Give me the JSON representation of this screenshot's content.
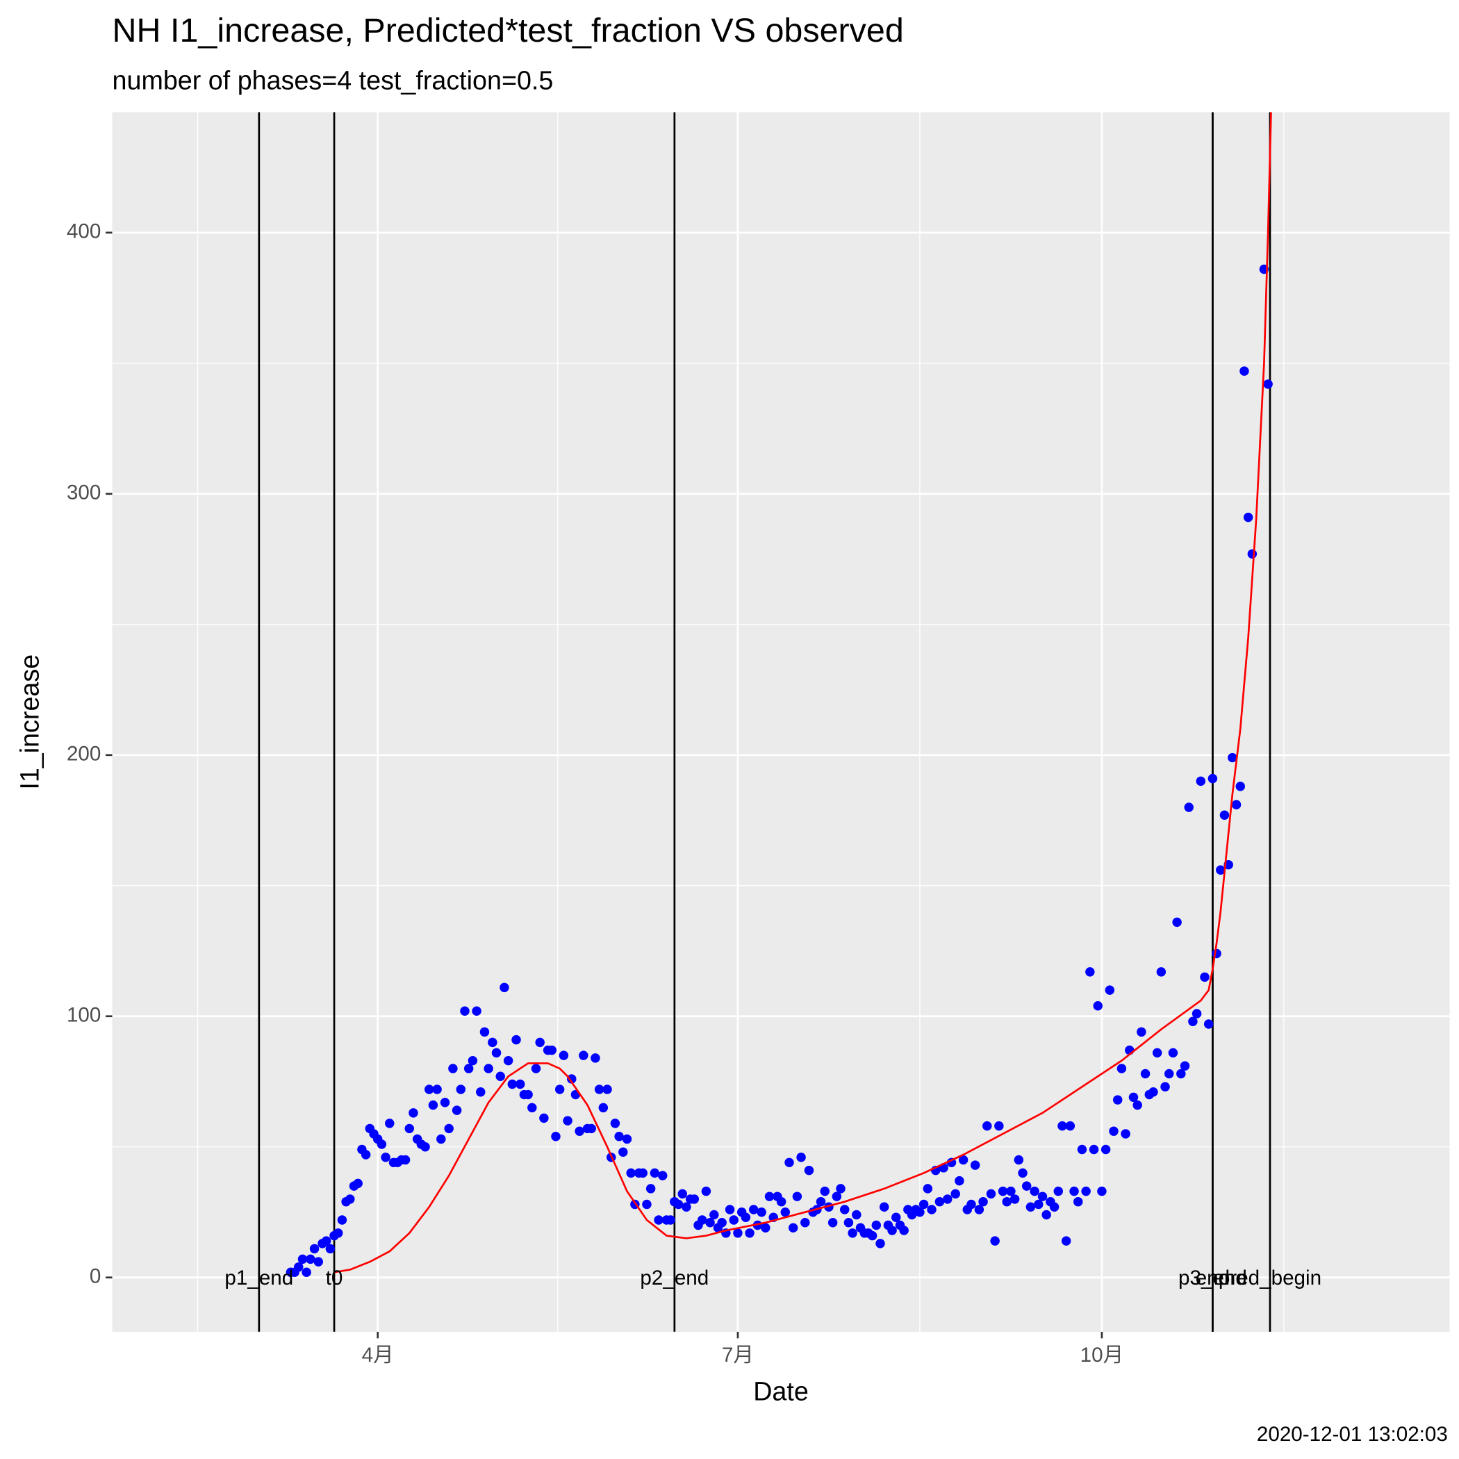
{
  "chart_data": {
    "type": "scatter",
    "title": "NH I1_increase, Predicted*test_fraction VS observed",
    "subtitle": "number of phases=4   test_fraction=0.5",
    "x_label": "Date",
    "y_label": "I1_increase",
    "caption": "2020-12-01 13:02:03",
    "xlim": [
      24.9,
      362.9
    ],
    "xticks": [
      {
        "value": 92,
        "label": "4月"
      },
      {
        "value": 183,
        "label": "7月"
      },
      {
        "value": 275,
        "label": "10月"
      }
    ],
    "ylim": [
      -20.8,
      446.1
    ],
    "yticks": [
      0,
      100,
      200,
      300,
      400
    ],
    "grid": true,
    "minor_grid": true,
    "markers": [
      {
        "label": "p1_end",
        "x": 62
      },
      {
        "label": "t0",
        "x": 81
      },
      {
        "label": "p2_end",
        "x": 167
      },
      {
        "label": "p3_end",
        "x": 303
      },
      {
        "label": "end",
        "x": 303
      },
      {
        "label": "pred_begin",
        "x": 317.5
      }
    ],
    "series": [
      {
        "type": "scatter",
        "color": "#0000ff",
        "x": [
          70,
          71,
          72,
          73,
          74,
          75,
          76,
          77,
          78,
          79,
          80,
          81,
          82,
          83,
          84,
          85,
          86,
          87,
          88,
          89,
          90,
          91,
          92,
          93,
          94,
          95,
          96,
          97,
          98,
          99,
          100,
          101,
          102,
          103,
          104,
          105,
          106,
          107,
          108,
          109,
          110,
          111,
          112,
          113,
          114,
          115,
          116,
          117,
          118,
          119,
          120,
          121,
          122,
          123,
          124,
          125,
          126,
          127,
          128,
          129,
          130,
          131,
          132,
          133,
          134,
          135,
          136,
          137,
          138,
          139,
          140,
          141,
          142,
          143,
          144,
          145,
          146,
          147,
          148,
          149,
          150,
          151,
          152,
          153,
          154,
          155,
          156,
          157,
          158,
          159,
          160,
          161,
          162,
          163,
          164,
          165,
          166,
          167,
          168,
          169,
          170,
          171,
          172,
          173,
          174,
          175,
          176,
          177,
          178,
          179,
          180,
          181,
          182,
          183,
          184,
          185,
          186,
          187,
          188,
          189,
          190,
          191,
          192,
          193,
          194,
          195,
          196,
          197,
          198,
          199,
          200,
          201,
          202,
          203,
          204,
          205,
          206,
          207,
          208,
          209,
          210,
          211,
          212,
          213,
          214,
          215,
          216,
          217,
          218,
          219,
          220,
          221,
          222,
          223,
          224,
          225,
          226,
          227,
          228,
          229,
          230,
          231,
          232,
          233,
          234,
          235,
          236,
          237,
          238,
          239,
          240,
          241,
          242,
          243,
          244,
          245,
          246,
          247,
          248,
          249,
          250,
          251,
          252,
          253,
          254,
          255,
          256,
          257,
          258,
          259,
          260,
          261,
          262,
          263,
          264,
          265,
          266,
          267,
          268,
          269,
          270,
          271,
          272,
          273,
          274,
          275,
          276,
          277,
          278,
          279,
          280,
          281,
          282,
          283,
          284,
          285,
          286,
          287,
          288,
          289,
          290,
          291,
          292,
          293,
          294,
          295,
          296,
          297,
          298,
          299,
          300,
          301,
          302,
          303,
          304,
          305,
          306,
          307,
          308,
          309,
          310,
          311,
          312,
          313,
          316,
          317
        ],
        "values": [
          2,
          2,
          4,
          7,
          2,
          7,
          11,
          6,
          13,
          14,
          11,
          16,
          17,
          22,
          29,
          30,
          35,
          36,
          49,
          47,
          57,
          55,
          53,
          51,
          46,
          59,
          44,
          44,
          45,
          45,
          57,
          63,
          53,
          51,
          50,
          72,
          66,
          72,
          53,
          67,
          57,
          80,
          64,
          72,
          102,
          80,
          83,
          102,
          71,
          94,
          80,
          90,
          86,
          77,
          111,
          83,
          74,
          91,
          74,
          70,
          70,
          65,
          80,
          90,
          61,
          87,
          87,
          54,
          72,
          85,
          60,
          76,
          70,
          56,
          85,
          57,
          57,
          84,
          72,
          65,
          72,
          46,
          59,
          54,
          48,
          53,
          40,
          28,
          40,
          40,
          28,
          34,
          40,
          22,
          39,
          22,
          22,
          29,
          28,
          32,
          27,
          30,
          30,
          20,
          22,
          33,
          21,
          24,
          19,
          21,
          17,
          26,
          22,
          17,
          25,
          23,
          17,
          26,
          20,
          25,
          19,
          31,
          23,
          31,
          29,
          25,
          44,
          19,
          31,
          46,
          21,
          41,
          25,
          26,
          29,
          33,
          27,
          21,
          31,
          34,
          26,
          21,
          17,
          24,
          19,
          17,
          17,
          16,
          20,
          13,
          27,
          20,
          18,
          23,
          20,
          18,
          26,
          24,
          26,
          25,
          28,
          34,
          26,
          41,
          29,
          42,
          30,
          44,
          32,
          37,
          45,
          26,
          28,
          43,
          26,
          29,
          58,
          32,
          14,
          58,
          33,
          29,
          33,
          30,
          45,
          40,
          35,
          27,
          33,
          28,
          31,
          24,
          29,
          27,
          33,
          58,
          14,
          58,
          33,
          29,
          49,
          33,
          117,
          49,
          104,
          33,
          49,
          110,
          56,
          68,
          80,
          55,
          87,
          69,
          66,
          94,
          78,
          70,
          71,
          86,
          117,
          73,
          78,
          86,
          136,
          78,
          81,
          180,
          98,
          101,
          190,
          115,
          97,
          191,
          124,
          156,
          177,
          158,
          199,
          181,
          188,
          347,
          291,
          277,
          386,
          342
        ]
      },
      {
        "type": "line",
        "color": "#ff0000",
        "x": [
          81,
          85,
          90,
          95,
          100,
          105,
          110,
          115,
          120,
          125,
          130,
          135,
          138,
          140,
          145,
          150,
          155,
          160,
          165,
          170,
          175,
          180,
          190,
          200,
          210,
          220,
          230,
          240,
          250,
          260,
          270,
          280,
          290,
          300,
          302,
          303,
          304,
          305,
          306,
          308,
          310,
          312,
          314,
          316,
          317,
          318
        ],
        "values": [
          2,
          3,
          6,
          10,
          17,
          27,
          39,
          53,
          67,
          77,
          82,
          82,
          80,
          77,
          66,
          50,
          33,
          22,
          16,
          15,
          16,
          18,
          21,
          25,
          29,
          34,
          40,
          47,
          55,
          63,
          73,
          83,
          95,
          106,
          110,
          118,
          128,
          140,
          155,
          185,
          210,
          245,
          290,
          350,
          400,
          460
        ]
      }
    ]
  }
}
